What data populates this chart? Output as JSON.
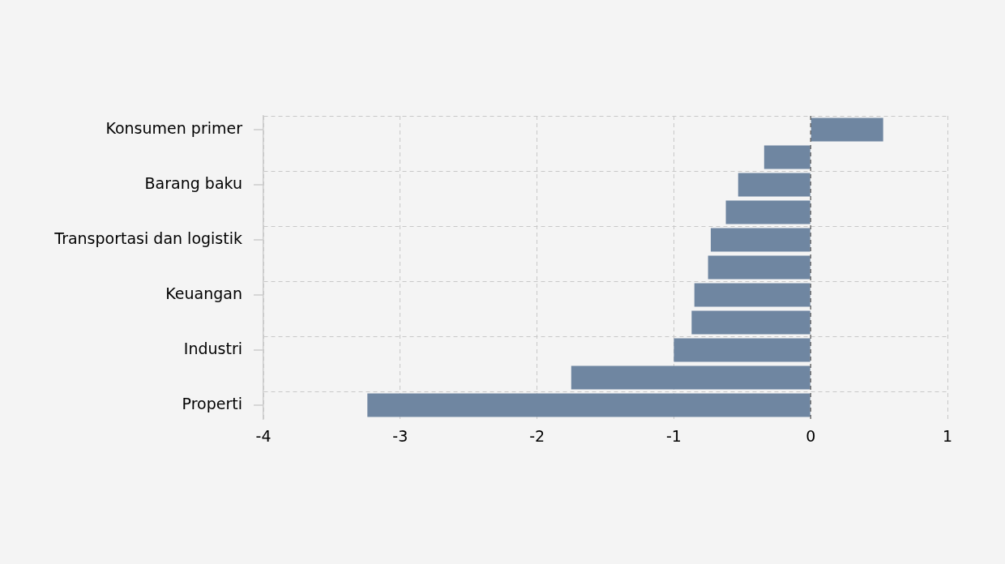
{
  "chart_data": {
    "type": "bar",
    "orientation": "horizontal",
    "categories": [
      "Konsumen primer",
      null,
      "Barang baku",
      null,
      "Transportasi dan logistik",
      null,
      "Keuangan",
      null,
      "Industri",
      null,
      "Properti"
    ],
    "values": [
      0.53,
      -0.34,
      -0.53,
      -0.62,
      -0.73,
      -0.75,
      -0.85,
      -0.87,
      -1.0,
      -1.75,
      -3.24
    ],
    "color": "#6f86a1",
    "xlim": [
      -4,
      1
    ],
    "xticks": [
      -4,
      -3,
      -2,
      -1,
      0,
      1
    ],
    "ref_lines": [
      {
        "axis": "x",
        "value": 0,
        "color": "#555555",
        "line_style": "dashed"
      }
    ],
    "grid": true,
    "legend": false
  }
}
